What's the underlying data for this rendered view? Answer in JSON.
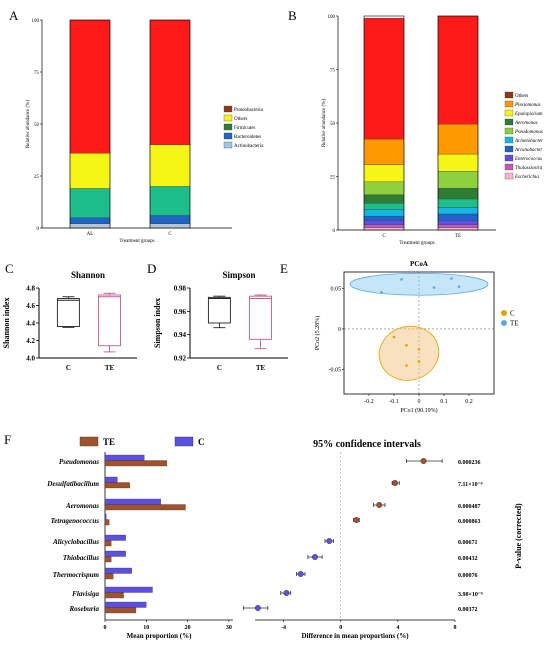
{
  "panels": {
    "A": "A",
    "B": "B",
    "C": "C",
    "D": "D",
    "E": "E",
    "F": "F"
  },
  "colors": {
    "Proteobacteria": "#8b3a1a",
    "Others": "#ff1a1a",
    "Others_A": "#f5f516",
    "Firmicutes": "#2e7d32",
    "Bacteroidetes": "#1e63c8",
    "Actinobacteria": "#9dc8e8",
    "teal": "#1cbf8a",
    "te_bar": "#a0522d",
    "c_bar": "#5b50e0"
  },
  "chart_data": [
    {
      "panel": "A",
      "type": "bar",
      "stacked": true,
      "ylabel": "Relative abundance (%)",
      "xlabel": "Treatment groups",
      "categories": [
        "AL",
        "C"
      ],
      "ylim": [
        0,
        100
      ],
      "yticks": [
        "0",
        "25",
        "50",
        "75",
        "100"
      ],
      "legend": [
        "Proteobacteria",
        "Others",
        "Firmicutes",
        "Bacteroidetes",
        "Actinobacteria"
      ],
      "segments": [
        {
          "color": "#b8c4d0",
          "values": [
            2,
            2
          ]
        },
        {
          "color": "#1e63c8",
          "values": [
            3,
            4
          ]
        },
        {
          "color": "#1cbf8a",
          "values": [
            14,
            14
          ]
        },
        {
          "color": "#f5f516",
          "values": [
            17,
            20
          ]
        },
        {
          "color": "#ff1a1a",
          "values": [
            64,
            60
          ]
        }
      ]
    },
    {
      "panel": "B",
      "type": "bar",
      "stacked": true,
      "ylabel": "Relative abundance (%)",
      "xlabel": "Treatment groups",
      "categories": [
        "C",
        "TE"
      ],
      "ylim": [
        0,
        100
      ],
      "yticks": [
        "0",
        "25",
        "50",
        "75",
        "100"
      ],
      "legend": [
        "Others",
        "Plesiomonas",
        "Epulopiscium",
        "Aeromonas",
        "Pseudomonas",
        "Acinetobacter",
        "Arcanobacter",
        "Enterococcus",
        "Thalassiosira",
        "Escherichia"
      ],
      "legend_colors": [
        "#8b3a1a",
        "#ff9900",
        "#f5f516",
        "#2e7d32",
        "#8fd13c",
        "#16b6e6",
        "#1e63c8",
        "#5b50e0",
        "#c25bb8",
        "#ffb6c8"
      ],
      "segments": [
        {
          "color": "#ffb6c8",
          "values": [
            1,
            1
          ]
        },
        {
          "color": "#c25bb8",
          "values": [
            1.5,
            1.5
          ]
        },
        {
          "color": "#5b50e0",
          "values": [
            2,
            2
          ]
        },
        {
          "color": "#1e63c8",
          "values": [
            2,
            3
          ]
        },
        {
          "color": "#16b6e6",
          "values": [
            3,
            3
          ]
        },
        {
          "color": "#1cbf8a",
          "values": [
            3,
            4
          ]
        },
        {
          "color": "#2e7d32",
          "values": [
            4,
            5
          ]
        },
        {
          "color": "#8fd13c",
          "values": [
            6,
            8
          ]
        },
        {
          "color": "#f5f516",
          "values": [
            8,
            8
          ]
        },
        {
          "color": "#ff9900",
          "values": [
            12,
            14
          ]
        },
        {
          "color": "#ff1a1a",
          "values": [
            56.5,
            50.5
          ]
        }
      ]
    },
    {
      "panel": "C",
      "type": "box",
      "title": "Shannon",
      "ylabel": "Shannon index",
      "categories": [
        "C",
        "TE"
      ],
      "ylim": [
        4.0,
        4.8
      ],
      "yticks": [
        "4.0",
        "4.2",
        "4.4",
        "4.6",
        "4.8"
      ],
      "boxes": [
        {
          "min": 4.35,
          "q1": 4.36,
          "median": 4.66,
          "q3": 4.68,
          "max": 4.7,
          "color": "#222222"
        },
        {
          "min": 4.07,
          "q1": 4.14,
          "median": 4.7,
          "q3": 4.72,
          "max": 4.74,
          "color": "#c25b8a"
        }
      ]
    },
    {
      "panel": "D",
      "type": "box",
      "title": "Simpson",
      "ylabel": "Simpson index",
      "categories": [
        "C",
        "TE"
      ],
      "ylim": [
        0.92,
        0.98
      ],
      "yticks": [
        "0.92",
        "0.94",
        "0.96",
        "0.98"
      ],
      "boxes": [
        {
          "min": 0.946,
          "q1": 0.95,
          "median": 0.971,
          "q3": 0.972,
          "max": 0.973,
          "color": "#222222"
        },
        {
          "min": 0.928,
          "q1": 0.936,
          "median": 0.971,
          "q3": 0.973,
          "max": 0.974,
          "color": "#c25b8a"
        }
      ]
    },
    {
      "panel": "E",
      "type": "scatter",
      "title": "PCoA",
      "xlabel": "PCo1 (90.19%)",
      "ylabel": "PCo2 (5.28%)",
      "xlim": [
        -0.3,
        0.3
      ],
      "ylim": [
        -0.08,
        0.07
      ],
      "xticks": [
        "-0.2",
        "-0.1",
        "0",
        "0.1",
        "0.2"
      ],
      "yticks": [
        "-0.05",
        "0",
        "0.05"
      ],
      "legend": [
        "C",
        "TE"
      ],
      "series": [
        {
          "name": "C",
          "color": "#e8a000",
          "x": [
            -0.1,
            -0.05,
            0.0,
            0.0,
            -0.05
          ],
          "y": [
            -0.01,
            -0.02,
            -0.025,
            -0.04,
            -0.045
          ]
        },
        {
          "name": "TE",
          "color": "#5aa9e6",
          "x": [
            -0.15,
            -0.07,
            0.06,
            0.13,
            0.16
          ],
          "y": [
            0.045,
            0.061,
            0.051,
            0.062,
            0.052
          ]
        }
      ]
    },
    {
      "panel": "F",
      "type": "bar",
      "orientation": "horizontal",
      "title": "95% confidence intervals",
      "legend": [
        "TE",
        "C"
      ],
      "xlabel_left": "Mean proportion (%)",
      "xlabel_right": "Difference in mean proportions (%)",
      "ylabel_right": "P-value (corrected)",
      "xticks_left": [
        "0",
        "10",
        "20",
        "30"
      ],
      "xticks_right": [
        "-4",
        "0",
        "4",
        "8"
      ],
      "categories": [
        "Pseudomonas",
        "Desulfatibacillum",
        "Aeromonas",
        "Tetragenococcus",
        "Alicyclobacillus",
        "Thiobacillus",
        "Thermocrispum",
        "Flavisiga",
        "Roseburia"
      ],
      "series": [
        {
          "name": "TE",
          "values": [
            15,
            6,
            19.5,
            1,
            1.5,
            1.5,
            2,
            4.5,
            7.5
          ]
        },
        {
          "name": "C",
          "values": [
            9.5,
            3,
            13.5,
            0.3,
            5,
            5,
            6.5,
            11.5,
            10
          ]
        }
      ],
      "diff": [
        5.8,
        3.8,
        2.7,
        1.1,
        -0.8,
        -1.8,
        -2.8,
        -3.8,
        -5.8
      ],
      "ci": [
        [
          4.6,
          7.1
        ],
        [
          3.6,
          4.1
        ],
        [
          2.3,
          3.1
        ],
        [
          0.9,
          1.3
        ],
        [
          -1.1,
          -0.5
        ],
        [
          -2.3,
          -1.3
        ],
        [
          -3.1,
          -2.5
        ],
        [
          -4.2,
          -3.5
        ],
        [
          -6.8,
          -5.1
        ]
      ],
      "p_values": [
        "0.000236",
        "7.11×10⁻⁶",
        "0.000487",
        "0.000863",
        "0.00671",
        "0.00432",
        "0.00076",
        "3.98×10⁻⁶",
        "0.00372"
      ]
    }
  ]
}
